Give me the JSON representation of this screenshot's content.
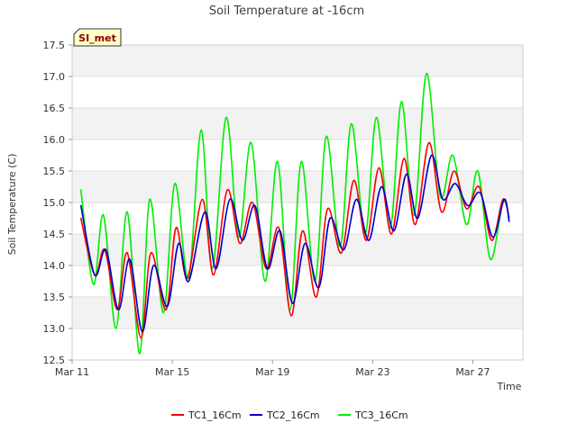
{
  "chart_data": {
    "type": "line",
    "title": "Soil Temperature at -16cm",
    "xlabel": "Time",
    "ylabel": "Soil Temperature (C)",
    "badge": "SI_met",
    "ylim": [
      12.5,
      17.5
    ],
    "xlim": [
      0,
      18
    ],
    "y_ticks": [
      12.5,
      13.0,
      13.5,
      14.0,
      14.5,
      15.0,
      15.5,
      16.0,
      16.5,
      17.0,
      17.5
    ],
    "y_tick_labels": [
      "12.5",
      "13.0",
      "13.5",
      "14.0",
      "14.5",
      "15.0",
      "15.5",
      "16.0",
      "16.5",
      "17.0",
      "17.5"
    ],
    "x_ticks": [
      0,
      4,
      8,
      12,
      16
    ],
    "x_tick_labels": [
      "Mar 11",
      "Mar 15",
      "Mar 19",
      "Mar 23",
      "Mar 27"
    ],
    "x_unit": "days since Mar 11",
    "legend_position": "bottom-center",
    "series": [
      {
        "name": "TC1_16Cm",
        "color": "#ff0000",
        "points": [
          [
            0.35,
            14.75
          ],
          [
            0.9,
            13.85
          ],
          [
            1.3,
            14.25
          ],
          [
            1.8,
            13.3
          ],
          [
            2.2,
            14.2
          ],
          [
            2.75,
            12.85
          ],
          [
            3.15,
            14.2
          ],
          [
            3.75,
            13.3
          ],
          [
            4.15,
            14.6
          ],
          [
            4.6,
            13.8
          ],
          [
            5.2,
            15.05
          ],
          [
            5.65,
            13.85
          ],
          [
            6.2,
            15.2
          ],
          [
            6.7,
            14.35
          ],
          [
            7.2,
            15.0
          ],
          [
            7.75,
            13.95
          ],
          [
            8.25,
            14.6
          ],
          [
            8.75,
            13.2
          ],
          [
            9.2,
            14.55
          ],
          [
            9.75,
            13.5
          ],
          [
            10.2,
            14.9
          ],
          [
            10.75,
            14.2
          ],
          [
            11.25,
            15.35
          ],
          [
            11.75,
            14.4
          ],
          [
            12.25,
            15.55
          ],
          [
            12.75,
            14.5
          ],
          [
            13.25,
            15.7
          ],
          [
            13.7,
            14.65
          ],
          [
            14.25,
            15.95
          ],
          [
            14.75,
            14.85
          ],
          [
            15.25,
            15.5
          ],
          [
            15.75,
            14.9
          ],
          [
            16.25,
            15.25
          ],
          [
            16.75,
            14.4
          ],
          [
            17.2,
            15.05
          ],
          [
            17.45,
            14.75
          ]
        ]
      },
      {
        "name": "TC2_16Cm",
        "color": "#0000cc",
        "points": [
          [
            0.35,
            14.95
          ],
          [
            0.9,
            13.85
          ],
          [
            1.35,
            14.25
          ],
          [
            1.85,
            13.3
          ],
          [
            2.3,
            14.1
          ],
          [
            2.8,
            12.95
          ],
          [
            3.25,
            14.0
          ],
          [
            3.8,
            13.35
          ],
          [
            4.25,
            14.35
          ],
          [
            4.65,
            13.75
          ],
          [
            5.3,
            14.85
          ],
          [
            5.75,
            13.95
          ],
          [
            6.3,
            15.05
          ],
          [
            6.8,
            14.4
          ],
          [
            7.3,
            14.95
          ],
          [
            7.8,
            13.95
          ],
          [
            8.3,
            14.55
          ],
          [
            8.8,
            13.4
          ],
          [
            9.3,
            14.35
          ],
          [
            9.85,
            13.65
          ],
          [
            10.3,
            14.75
          ],
          [
            10.85,
            14.25
          ],
          [
            11.35,
            15.05
          ],
          [
            11.85,
            14.4
          ],
          [
            12.35,
            15.25
          ],
          [
            12.85,
            14.55
          ],
          [
            13.35,
            15.45
          ],
          [
            13.8,
            14.75
          ],
          [
            14.35,
            15.75
          ],
          [
            14.8,
            15.05
          ],
          [
            15.3,
            15.3
          ],
          [
            15.8,
            14.95
          ],
          [
            16.3,
            15.15
          ],
          [
            16.8,
            14.45
          ],
          [
            17.25,
            15.05
          ],
          [
            17.45,
            14.7
          ]
        ]
      },
      {
        "name": "TC3_16Cm",
        "color": "#00ee00",
        "points": [
          [
            0.35,
            15.2
          ],
          [
            0.85,
            13.7
          ],
          [
            1.25,
            14.8
          ],
          [
            1.75,
            13.0
          ],
          [
            2.2,
            14.85
          ],
          [
            2.7,
            12.6
          ],
          [
            3.1,
            15.05
          ],
          [
            3.65,
            13.25
          ],
          [
            4.1,
            15.3
          ],
          [
            4.65,
            13.8
          ],
          [
            5.15,
            16.15
          ],
          [
            5.6,
            13.95
          ],
          [
            6.15,
            16.35
          ],
          [
            6.65,
            14.45
          ],
          [
            7.15,
            15.95
          ],
          [
            7.7,
            13.75
          ],
          [
            8.2,
            15.65
          ],
          [
            8.7,
            13.3
          ],
          [
            9.15,
            15.65
          ],
          [
            9.7,
            13.75
          ],
          [
            10.15,
            16.05
          ],
          [
            10.7,
            14.3
          ],
          [
            11.15,
            16.25
          ],
          [
            11.7,
            14.5
          ],
          [
            12.15,
            16.35
          ],
          [
            12.7,
            14.6
          ],
          [
            13.15,
            16.6
          ],
          [
            13.65,
            14.8
          ],
          [
            14.15,
            17.05
          ],
          [
            14.7,
            15.1
          ],
          [
            15.2,
            15.75
          ],
          [
            15.75,
            14.65
          ],
          [
            16.2,
            15.5
          ],
          [
            16.7,
            14.1
          ],
          [
            17.2,
            15.0
          ],
          [
            17.45,
            14.75
          ]
        ]
      }
    ]
  }
}
